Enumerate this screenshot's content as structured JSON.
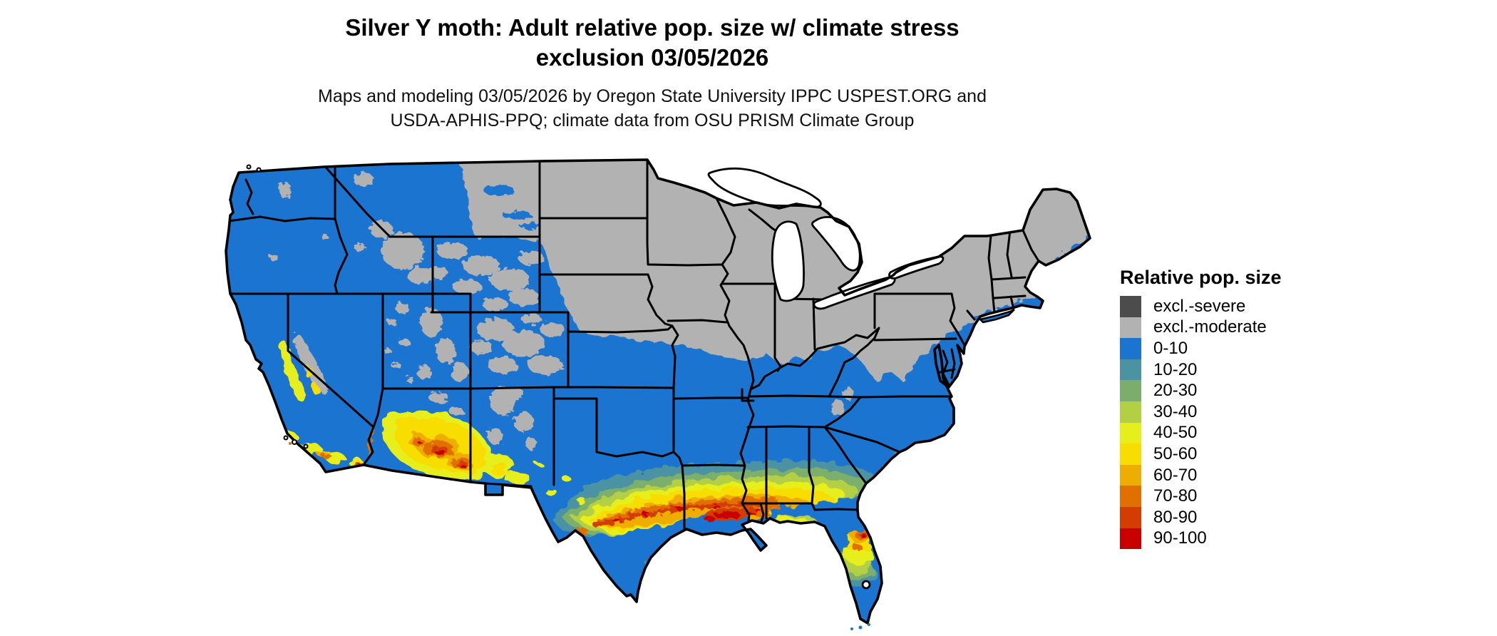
{
  "header": {
    "title_line1": "Silver Y moth: Adult relative pop. size w/ climate stress",
    "title_line2": "exclusion 03/05/2026",
    "subtitle_line1": "Maps and modeling 03/05/2026 by Oregon State University IPPC USPEST.ORG and",
    "subtitle_line2": "USDA-APHIS-PPQ; climate data from OSU PRISM Climate Group"
  },
  "legend": {
    "title": "Relative pop. size",
    "items": [
      {
        "label": "excl.-severe",
        "color": "#4C4C4C"
      },
      {
        "label": "excl.-moderate",
        "color": "#B2B2B2"
      },
      {
        "label": "0-10",
        "color": "#1B74CF"
      },
      {
        "label": "10-20",
        "color": "#4B93A3"
      },
      {
        "label": "20-30",
        "color": "#7BAE6C"
      },
      {
        "label": "30-40",
        "color": "#B3CF44"
      },
      {
        "label": "40-50",
        "color": "#E6EE1C"
      },
      {
        "label": "50-60",
        "color": "#F8DE00"
      },
      {
        "label": "60-70",
        "color": "#EEAD03"
      },
      {
        "label": "70-80",
        "color": "#E17000"
      },
      {
        "label": "80-90",
        "color": "#D53C02"
      },
      {
        "label": "90-100",
        "color": "#C80000"
      }
    ]
  },
  "map": {
    "region": "Continental United States",
    "border_color": "#000000",
    "water_color": "#FFFFFF",
    "background_color": "#FFFFFF",
    "zones": [
      {
        "category": "excl.-moderate",
        "extent": "Northern plains, Midwest, Great Lakes states, Northeast, mid-Appalachians, Rocky Mountain highlands"
      },
      {
        "category": "0-10",
        "extent": "Pacific states, Great Basin, central/southern plains, mid-South, Southeast interior, south Texas, south Florida"
      },
      {
        "category": "10-40",
        "extent": "Transition band along inner Gulf Coast states and central Florida"
      },
      {
        "category": "40-100",
        "extent": "Central/east Texas through Louisiana to the Florida panhandle, north-central Florida, southern Arizona/New Mexico, southern California"
      }
    ]
  }
}
